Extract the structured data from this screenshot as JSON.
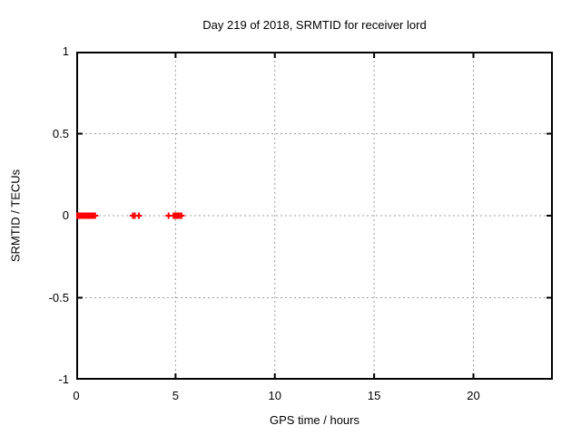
{
  "page": {
    "background": "#ffffff",
    "text_color": "#000000"
  },
  "chart_data": {
    "type": "scatter",
    "title": "Day 219 of 2018, SRMTID for receiver lord",
    "xlabel": "GPS time / hours",
    "ylabel": "SRMTID / TECUs",
    "xlim": [
      0,
      24
    ],
    "ylim": [
      -1,
      1
    ],
    "xticks": [
      0,
      5,
      10,
      15,
      20
    ],
    "xtick_labels": [
      "0",
      "5",
      "10",
      "15",
      "20"
    ],
    "yticks": [
      -1,
      -0.5,
      0,
      0.5,
      1
    ],
    "ytick_labels": [
      "-1",
      "-0.5",
      "0",
      "0.5",
      "1"
    ],
    "grid": true,
    "grid_style": "dotted",
    "grid_color": "#9e9e9e",
    "border_color": "#000000",
    "legend": false,
    "series": [
      {
        "name": "SRMTID",
        "marker": "plus",
        "marker_size": 7,
        "color": "#ff0000",
        "points": [
          [
            0.05,
            0
          ],
          [
            0.1,
            0
          ],
          [
            0.15,
            0
          ],
          [
            0.2,
            0
          ],
          [
            0.25,
            0
          ],
          [
            0.3,
            0
          ],
          [
            0.35,
            0
          ],
          [
            0.4,
            0
          ],
          [
            0.45,
            0
          ],
          [
            0.5,
            0
          ],
          [
            0.55,
            0
          ],
          [
            0.6,
            0
          ],
          [
            0.65,
            0
          ],
          [
            0.7,
            0
          ],
          [
            0.75,
            0
          ],
          [
            0.8,
            0
          ],
          [
            0.85,
            0
          ],
          [
            0.9,
            0
          ],
          [
            0.95,
            0
          ],
          [
            2.85,
            0
          ],
          [
            2.95,
            0
          ],
          [
            3.15,
            0
          ],
          [
            4.65,
            0
          ],
          [
            4.9,
            0
          ],
          [
            4.95,
            0
          ],
          [
            5.0,
            0
          ],
          [
            5.05,
            0
          ],
          [
            5.1,
            0
          ],
          [
            5.15,
            0
          ],
          [
            5.2,
            0
          ],
          [
            5.3,
            0
          ]
        ]
      }
    ]
  }
}
